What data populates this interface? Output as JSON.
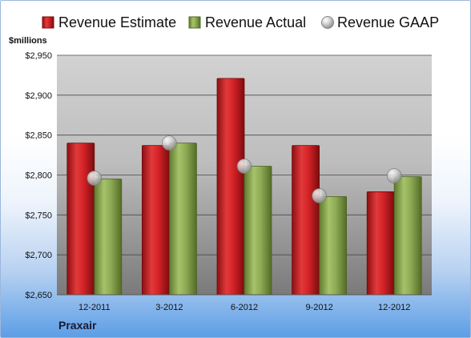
{
  "unit_label": "$millions",
  "company": "Praxair",
  "colors": {
    "estimate": "#c81e22",
    "actual": "#8aa752",
    "gaap": "#b8b8b8",
    "plot_top": "#cfcfcf",
    "plot_bottom": "#7a7a7a"
  },
  "chart_data": {
    "type": "bar",
    "categories": [
      "12-2011",
      "3-2012",
      "6-2012",
      "9-2012",
      "12-2012"
    ],
    "series": [
      {
        "name": "Revenue Estimate",
        "kind": "bar",
        "values": [
          2840,
          2837,
          2921,
          2837,
          2779
        ]
      },
      {
        "name": "Revenue Actual",
        "kind": "bar",
        "values": [
          2795,
          2840,
          2811,
          2773,
          2798
        ]
      },
      {
        "name": "Revenue GAAP",
        "kind": "marker",
        "values": [
          2796,
          2840,
          2811,
          2774,
          2799
        ]
      }
    ],
    "ylim": [
      2650,
      2950
    ],
    "yticks": [
      2650,
      2700,
      2750,
      2800,
      2850,
      2900,
      2950
    ],
    "ytick_labels": [
      "$2,650",
      "$2,700",
      "$2,750",
      "$2,800",
      "$2,850",
      "$2,900",
      "$2,950"
    ],
    "grid": true,
    "legend_position": "top"
  }
}
